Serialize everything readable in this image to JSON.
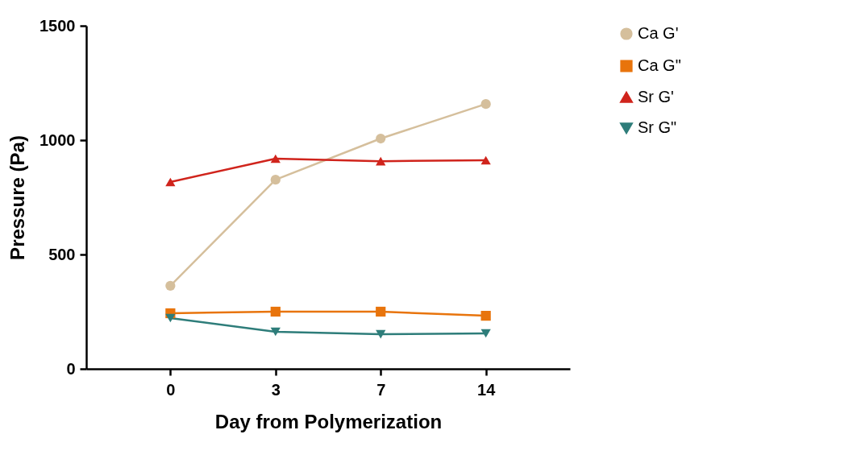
{
  "chart_data": {
    "type": "line",
    "xlabel": "Day from Polymerization",
    "ylabel": "Pressure (Pa)",
    "categories": [
      "0",
      "3",
      "7",
      "14"
    ],
    "series": [
      {
        "name": "Ca G'",
        "color": "#d5bf9c",
        "marker": "circle",
        "values": [
          363,
          827,
          1007,
          1158
        ]
      },
      {
        "name": "Ca G\"",
        "color": "#e8740c",
        "marker": "square",
        "values": [
          243,
          250,
          250,
          232
        ]
      },
      {
        "name": "Sr G'",
        "color": "#d0241c",
        "marker": "triangle",
        "values": [
          817,
          919,
          908,
          912
        ]
      },
      {
        "name": "Sr G\"",
        "color": "#2e7d7a",
        "marker": "triangle-down",
        "values": [
          222,
          162,
          151,
          155
        ]
      }
    ],
    "ylim": [
      0,
      1500
    ],
    "yticks": [
      0,
      500,
      1000,
      1500
    ],
    "grid": false,
    "legend": "right"
  }
}
